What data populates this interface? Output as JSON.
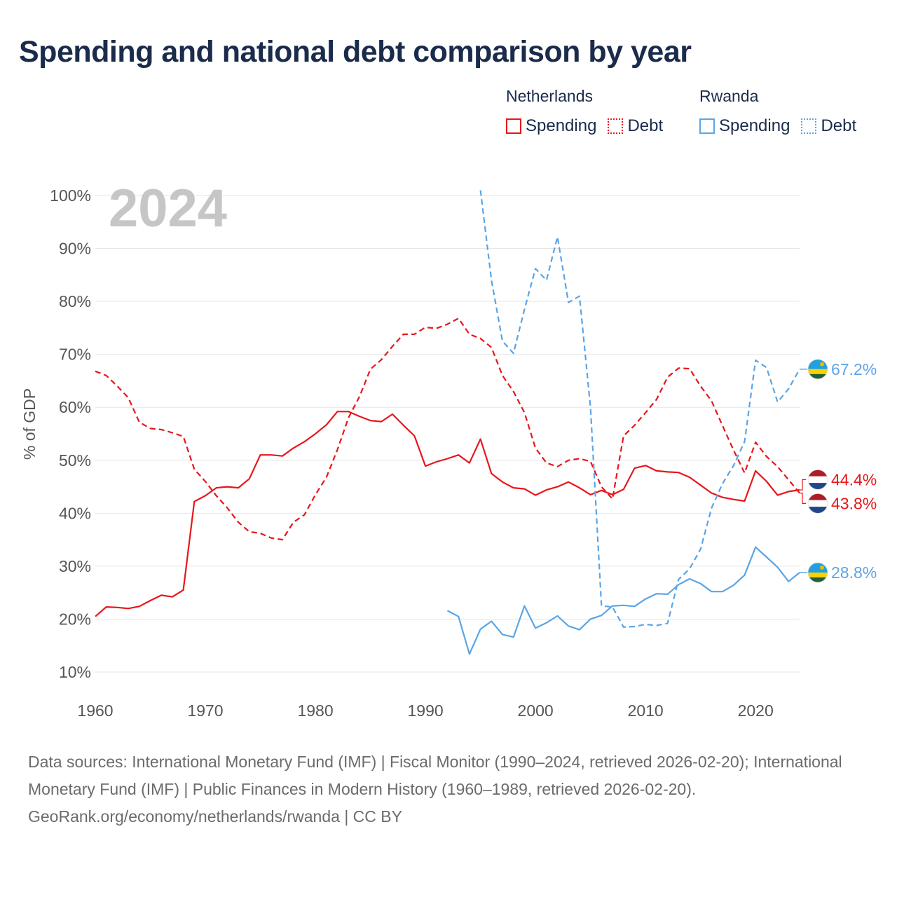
{
  "title": "Spending and national debt comparison by year",
  "legend": {
    "groups": [
      {
        "country": "Netherlands",
        "color": "#e8161a",
        "items": [
          {
            "label": "Spending",
            "style": "solid"
          },
          {
            "label": "Debt",
            "style": "dotted"
          }
        ]
      },
      {
        "country": "Rwanda",
        "color": "#5aa5e6",
        "items": [
          {
            "label": "Spending",
            "style": "solid"
          },
          {
            "label": "Debt",
            "style": "dotted"
          }
        ]
      }
    ]
  },
  "year_label": "2024",
  "chart_data": {
    "type": "line",
    "title": "Spending and national debt comparison by year",
    "xlabel": "",
    "ylabel": "% of GDP",
    "xlim": [
      1960,
      2024
    ],
    "ylim": [
      10,
      100
    ],
    "x_ticks": [
      1960,
      1970,
      1980,
      1990,
      2000,
      2010,
      2020
    ],
    "y_ticks": [
      10,
      20,
      30,
      40,
      50,
      60,
      70,
      80,
      90,
      100
    ],
    "y_tick_suffix": "%",
    "series": [
      {
        "name": "Netherlands Spending",
        "country": "Netherlands",
        "measure": "Spending",
        "color": "#e8161a",
        "dash": "solid",
        "x": [
          1960,
          1961,
          1962,
          1963,
          1964,
          1965,
          1966,
          1967,
          1968,
          1969,
          1970,
          1971,
          1972,
          1973,
          1974,
          1975,
          1976,
          1977,
          1978,
          1979,
          1980,
          1981,
          1982,
          1983,
          1984,
          1985,
          1986,
          1987,
          1988,
          1989,
          1990,
          1991,
          1992,
          1993,
          1994,
          1995,
          1996,
          1997,
          1998,
          1999,
          2000,
          2001,
          2002,
          2003,
          2004,
          2005,
          2006,
          2007,
          2008,
          2009,
          2010,
          2011,
          2012,
          2013,
          2014,
          2015,
          2016,
          2017,
          2018,
          2019,
          2020,
          2021,
          2022,
          2023,
          2024
        ],
        "values": [
          20.5,
          22.3,
          22.2,
          22.0,
          22.4,
          23.5,
          24.5,
          24.2,
          25.5,
          42.2,
          43.3,
          44.8,
          45.0,
          44.8,
          46.5,
          51.0,
          51.0,
          50.8,
          52.3,
          53.5,
          55.0,
          56.7,
          59.2,
          59.2,
          58.3,
          57.5,
          57.3,
          58.7,
          56.6,
          54.6,
          48.9,
          49.7,
          50.3,
          51.0,
          49.5,
          54.0,
          47.5,
          45.9,
          44.8,
          44.6,
          43.4,
          44.4,
          45.0,
          45.9,
          44.8,
          43.5,
          44.3,
          43.5,
          44.5,
          48.5,
          49.0,
          48.0,
          47.8,
          47.7,
          46.8,
          45.3,
          43.8,
          43.0,
          42.6,
          42.3,
          48.0,
          46.0,
          43.4,
          44.1,
          44.4
        ],
        "end_label": "44.4%"
      },
      {
        "name": "Netherlands Debt",
        "country": "Netherlands",
        "measure": "Debt",
        "color": "#e8161a",
        "dash": "dashed",
        "x": [
          1960,
          1961,
          1962,
          1963,
          1964,
          1965,
          1966,
          1967,
          1968,
          1969,
          1970,
          1971,
          1972,
          1973,
          1974,
          1975,
          1976,
          1977,
          1978,
          1979,
          1980,
          1981,
          1982,
          1983,
          1984,
          1985,
          1986,
          1987,
          1988,
          1989,
          1990,
          1991,
          1992,
          1993,
          1994,
          1995,
          1996,
          1997,
          1998,
          1999,
          2000,
          2001,
          2002,
          2003,
          2004,
          2005,
          2006,
          2007,
          2008,
          2009,
          2010,
          2011,
          2012,
          2013,
          2014,
          2015,
          2016,
          2017,
          2018,
          2019,
          2020,
          2021,
          2022,
          2023,
          2024
        ],
        "values": [
          66.8,
          66.0,
          64.0,
          61.8,
          57.2,
          56.0,
          55.8,
          55.2,
          54.5,
          48.3,
          46.0,
          43.3,
          41.0,
          38.3,
          36.5,
          36.2,
          35.3,
          35.0,
          38.3,
          39.7,
          43.5,
          46.8,
          52.0,
          58.0,
          62.0,
          67.2,
          69.0,
          71.5,
          73.8,
          73.8,
          75.1,
          74.9,
          75.7,
          76.8,
          73.8,
          73.0,
          71.3,
          66.0,
          63.0,
          59.0,
          52.3,
          49.5,
          48.8,
          50.0,
          50.3,
          49.8,
          45.0,
          42.7,
          54.6,
          56.6,
          59.0,
          61.5,
          65.7,
          67.4,
          67.3,
          64.0,
          61.2,
          56.5,
          51.9,
          47.6,
          53.4,
          50.7,
          48.8,
          46.3,
          43.8
        ],
        "end_label": "43.8%"
      },
      {
        "name": "Rwanda Spending",
        "country": "Rwanda",
        "measure": "Spending",
        "color": "#5aa5e6",
        "dash": "solid",
        "x": [
          1992,
          1993,
          1994,
          1995,
          1996,
          1997,
          1998,
          1999,
          2000,
          2001,
          2002,
          2003,
          2004,
          2005,
          2006,
          2007,
          2008,
          2009,
          2010,
          2011,
          2012,
          2013,
          2014,
          2015,
          2016,
          2017,
          2018,
          2019,
          2020,
          2021,
          2022,
          2023,
          2024
        ],
        "values": [
          21.6,
          20.5,
          13.4,
          18.1,
          19.6,
          17.1,
          16.6,
          22.5,
          18.3,
          19.3,
          20.6,
          18.7,
          18.0,
          20.0,
          20.7,
          22.5,
          22.6,
          22.4,
          23.8,
          24.8,
          24.7,
          26.5,
          27.6,
          26.7,
          25.2,
          25.2,
          26.4,
          28.3,
          33.6,
          31.7,
          29.8,
          27.1,
          28.8
        ],
        "end_label": "28.8%"
      },
      {
        "name": "Rwanda Debt",
        "country": "Rwanda",
        "measure": "Debt",
        "color": "#5aa5e6",
        "dash": "dashed",
        "x": [
          1995,
          1996,
          1997,
          1998,
          1999,
          2000,
          2001,
          2002,
          2003,
          2004,
          2005,
          2006,
          2007,
          2008,
          2009,
          2010,
          2011,
          2012,
          2013,
          2014,
          2015,
          2016,
          2017,
          2018,
          2019,
          2020,
          2021,
          2022,
          2023,
          2024
        ],
        "values": [
          101.0,
          84.0,
          72.5,
          70.2,
          78.5,
          86.2,
          84.0,
          92.2,
          79.8,
          81.0,
          60.0,
          22.5,
          22.3,
          18.5,
          18.6,
          19.0,
          18.8,
          19.2,
          27.5,
          29.5,
          33.2,
          41.0,
          45.6,
          49.0,
          53.5,
          68.9,
          67.5,
          61.0,
          63.5,
          67.2
        ],
        "end_label": "67.2%"
      }
    ]
  },
  "footer": {
    "sources": "Data sources: International Monetary Fund (IMF) | Fiscal Monitor (1990–2024, retrieved 2026-02-20); International Monetary Fund (IMF) | Public Finances in Modern History (1960–1989, retrieved 2026-02-20).",
    "credit": "GeoRank.org/economy/netherlands/rwanda | CC BY"
  }
}
